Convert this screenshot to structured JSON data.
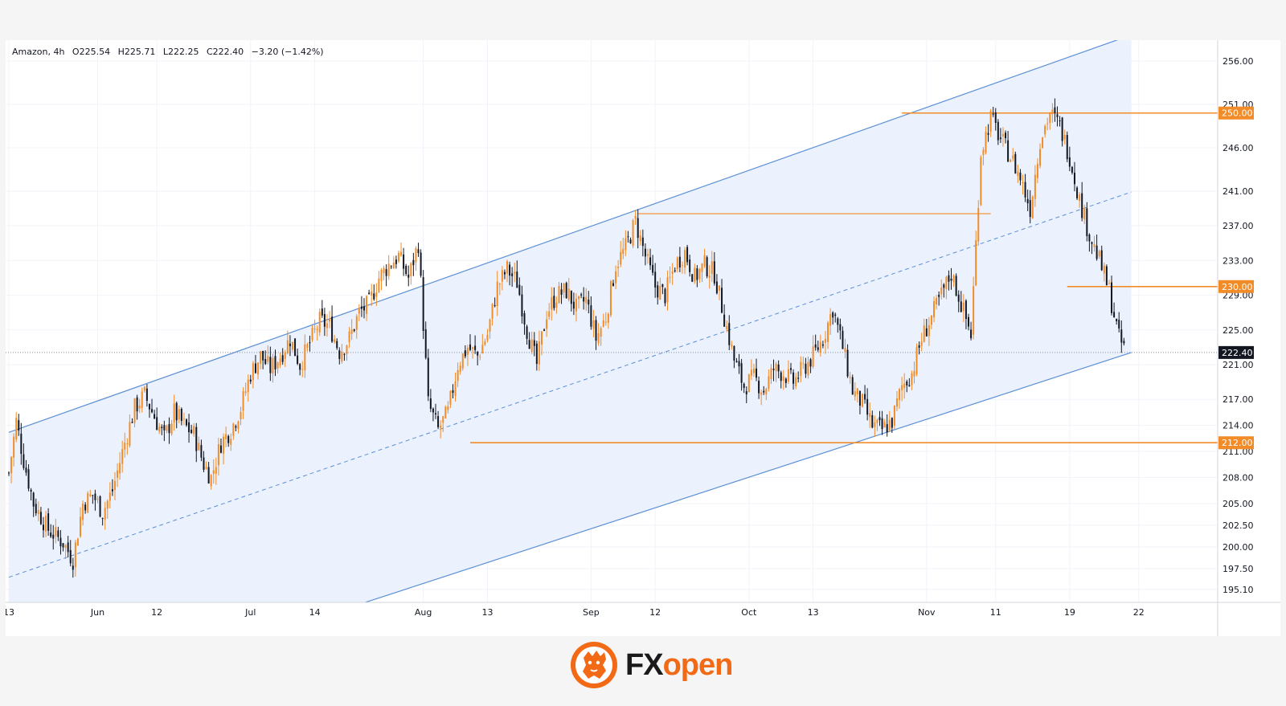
{
  "legend": {
    "symbol": "Amazon, 4h",
    "open": "O225.54",
    "high": "H225.71",
    "low": "L222.25",
    "close": "C222.40",
    "change": "−3.20 (−1.42%)"
  },
  "brand": {
    "fx": "FX",
    "open": "open",
    "logo_icon": "tiger-icon"
  },
  "colors": {
    "up": "#f28c28",
    "down": "#131722",
    "channel": "#5b8fd6",
    "channel_fill": "#e8f0fd",
    "level": "#f28c28",
    "price_line": "#8a8f99"
  },
  "chart_data": {
    "type": "candlestick",
    "title": "Amazon, 4h",
    "ylim": [
      193.6,
      258.4
    ],
    "y_ticks": [
      256.0,
      251.0,
      246.0,
      241.0,
      237.0,
      233.0,
      229.0,
      225.0,
      221.0,
      217.0,
      214.0,
      211.0,
      208.0,
      205.0,
      202.5,
      200.0,
      197.5,
      195.1
    ],
    "y_tick_labels": [
      "256.00",
      "251.00",
      "246.00",
      "241.00",
      "237.00",
      "233.00",
      "229.00",
      "225.00",
      "221.00",
      "217.00",
      "214.00",
      "211.00",
      "208.00",
      "205.00",
      "202.50",
      "200.00",
      "197.50",
      "195.10"
    ],
    "x_ticks": [
      {
        "label": "13",
        "bar": 0
      },
      {
        "label": "Jun",
        "bar": 36
      },
      {
        "label": "12",
        "bar": 60
      },
      {
        "label": "Jul",
        "bar": 98
      },
      {
        "label": "14",
        "bar": 124
      },
      {
        "label": "Aug",
        "bar": 168
      },
      {
        "label": "13",
        "bar": 194
      },
      {
        "label": "Sep",
        "bar": 236
      },
      {
        "label": "12",
        "bar": 262
      },
      {
        "label": "Oct",
        "bar": 300
      },
      {
        "label": "13",
        "bar": 326
      },
      {
        "label": "Nov",
        "bar": 372
      },
      {
        "label": "11",
        "bar": 400
      },
      {
        "label": "19",
        "bar": 430
      },
      {
        "label": "22",
        "bar": 458
      }
    ],
    "bar_count_axis": 490,
    "channel": {
      "upper": [
        [
          0,
          213.2
        ],
        [
          455,
          259.0
        ]
      ],
      "middle": [
        [
          0,
          196.5
        ],
        [
          455,
          240.9
        ]
      ],
      "lower": [
        [
          0,
          180.2
        ],
        [
          455,
          222.4
        ]
      ]
    },
    "horizontal_levels": [
      {
        "price": 250.0,
        "label": "250.00",
        "from_bar": 362
      },
      {
        "price": 238.4,
        "label": "",
        "from_bar": 255,
        "to_bar": 398
      },
      {
        "price": 230.0,
        "label": "230.00",
        "from_bar": 429
      },
      {
        "price": 212.0,
        "label": "212.00",
        "from_bar": 187
      }
    ],
    "last_price": {
      "price": 222.4,
      "label": "222.40"
    },
    "close_path": [
      [
        0,
        208.5
      ],
      [
        3,
        214.5
      ],
      [
        6,
        210.0
      ],
      [
        10,
        205.0
      ],
      [
        16,
        202.0
      ],
      [
        22,
        200.5
      ],
      [
        26,
        198.5
      ],
      [
        30,
        205.0
      ],
      [
        34,
        206.0
      ],
      [
        38,
        204.0
      ],
      [
        42,
        206.5
      ],
      [
        47,
        212.0
      ],
      [
        51,
        216.0
      ],
      [
        55,
        217.5
      ],
      [
        59,
        215.0
      ],
      [
        63,
        212.5
      ],
      [
        67,
        215.5
      ],
      [
        71,
        214.0
      ],
      [
        75,
        213.0
      ],
      [
        79,
        209.5
      ],
      [
        82,
        208.0
      ],
      [
        86,
        212.0
      ],
      [
        90,
        213.5
      ],
      [
        94,
        216.0
      ],
      [
        98,
        220.0
      ],
      [
        102,
        222.0
      ],
      [
        106,
        220.5
      ],
      [
        110,
        222.0
      ],
      [
        114,
        224.0
      ],
      [
        118,
        221.0
      ],
      [
        122,
        223.5
      ],
      [
        126,
        226.0
      ],
      [
        130,
        225.5
      ],
      [
        134,
        222.5
      ],
      [
        138,
        224.0
      ],
      [
        142,
        227.0
      ],
      [
        146,
        228.0
      ],
      [
        150,
        231.0
      ],
      [
        154,
        232.5
      ],
      [
        158,
        233.5
      ],
      [
        162,
        231.0
      ],
      [
        166,
        235.0
      ],
      [
        170,
        216.5
      ],
      [
        174,
        213.5
      ],
      [
        178,
        215.5
      ],
      [
        182,
        221.0
      ],
      [
        186,
        223.0
      ],
      [
        190,
        222.0
      ],
      [
        194,
        224.5
      ],
      [
        198,
        230.0
      ],
      [
        202,
        232.0
      ],
      [
        206,
        230.5
      ],
      [
        210,
        225.0
      ],
      [
        214,
        221.0
      ],
      [
        218,
        227.0
      ],
      [
        222,
        229.0
      ],
      [
        226,
        229.5
      ],
      [
        230,
        227.5
      ],
      [
        234,
        228.5
      ],
      [
        238,
        224.0
      ],
      [
        242,
        226.5
      ],
      [
        246,
        232.5
      ],
      [
        250,
        234.5
      ],
      [
        254,
        237.5
      ],
      [
        258,
        233.5
      ],
      [
        262,
        230.0
      ],
      [
        266,
        229.0
      ],
      [
        270,
        232.5
      ],
      [
        274,
        234.0
      ],
      [
        278,
        231.0
      ],
      [
        282,
        232.5
      ],
      [
        286,
        231.5
      ],
      [
        290,
        226.5
      ],
      [
        294,
        221.5
      ],
      [
        298,
        218.5
      ],
      [
        302,
        219.5
      ],
      [
        306,
        218.0
      ],
      [
        310,
        220.5
      ],
      [
        314,
        220.0
      ],
      [
        318,
        219.0
      ],
      [
        322,
        220.5
      ],
      [
        326,
        222.0
      ],
      [
        330,
        224.0
      ],
      [
        334,
        227.5
      ],
      [
        338,
        223.0
      ],
      [
        342,
        218.0
      ],
      [
        346,
        216.5
      ],
      [
        350,
        214.0
      ],
      [
        354,
        213.5
      ],
      [
        358,
        214.5
      ],
      [
        362,
        218.5
      ],
      [
        366,
        220.0
      ],
      [
        370,
        224.0
      ],
      [
        374,
        226.5
      ],
      [
        378,
        229.0
      ],
      [
        382,
        231.5
      ],
      [
        386,
        228.0
      ],
      [
        390,
        224.5
      ],
      [
        394,
        245.5
      ],
      [
        398,
        249.5
      ],
      [
        402,
        247.0
      ],
      [
        406,
        245.0
      ],
      [
        410,
        242.5
      ],
      [
        414,
        239.0
      ],
      [
        418,
        247.0
      ],
      [
        422,
        250.0
      ],
      [
        426,
        248.5
      ],
      [
        430,
        245.0
      ],
      [
        434,
        240.0
      ],
      [
        438,
        236.0
      ],
      [
        442,
        233.0
      ],
      [
        446,
        229.5
      ],
      [
        450,
        224.0
      ],
      [
        453,
        222.4
      ]
    ]
  }
}
